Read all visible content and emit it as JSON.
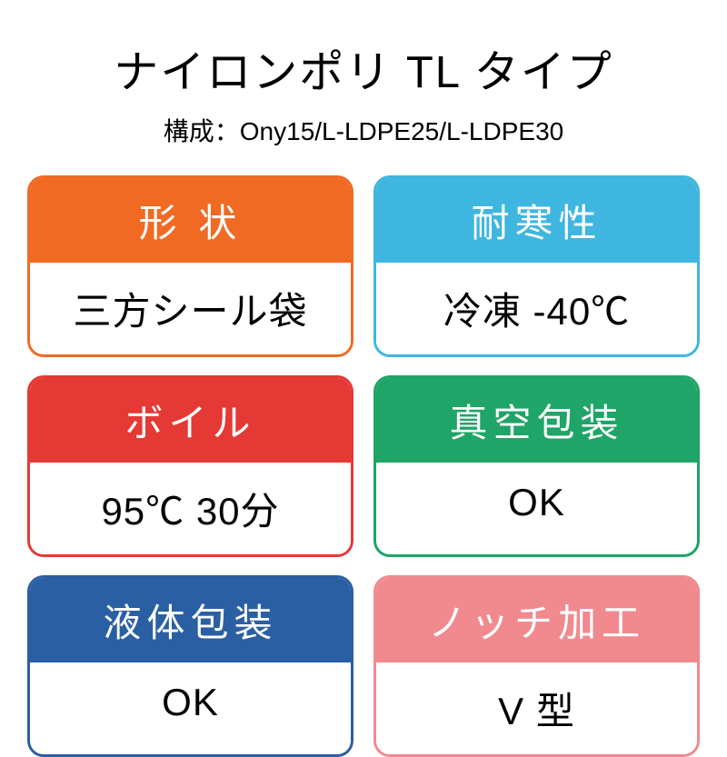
{
  "title": "ナイロンポリ TL タイプ",
  "subtitle": "構成：Ony15/L-LDPE25/L-LDPE30",
  "background_color": "#ffffff",
  "text_color": "#000000",
  "title_fontsize": 49,
  "subtitle_fontsize": 28,
  "card_header_fontsize": 42,
  "card_body_fontsize": 42,
  "card_border_radius": 18,
  "card_border_width": 3,
  "header_text_color": "#ffffff",
  "body_background": "#ffffff",
  "cards": [
    {
      "header": "形 状",
      "body": "三方シール袋",
      "color": "#f06a24"
    },
    {
      "header": "耐寒性",
      "body": "冷凍 -40℃",
      "color": "#3fb6e0"
    },
    {
      "header": "ボイル",
      "body": "95℃ 30分",
      "color": "#e53935"
    },
    {
      "header": "真空包装",
      "body": "OK",
      "color": "#1fa567"
    },
    {
      "header": "液体包装",
      "body": "OK",
      "color": "#2a5fa3"
    },
    {
      "header": "ノッチ加工",
      "body": "V 型",
      "color": "#f08a8f"
    }
  ]
}
